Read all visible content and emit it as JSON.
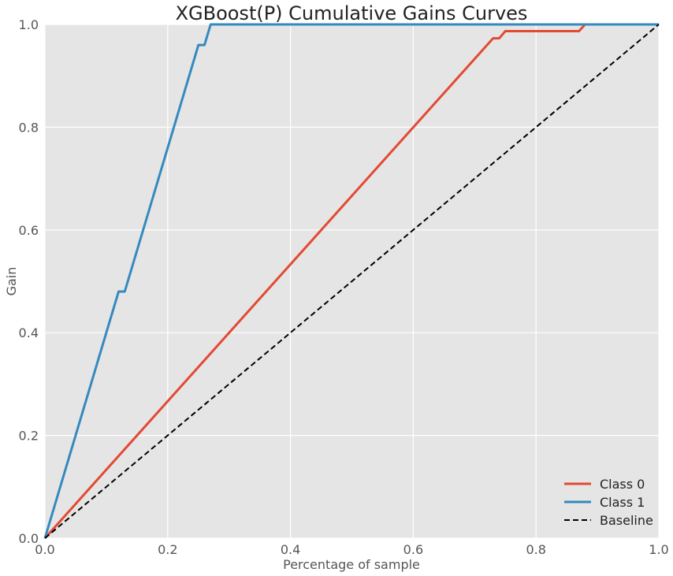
{
  "chart_data": {
    "type": "line",
    "title": "XGBoost(P) Cumulative Gains Curves",
    "xlabel": "Percentage of sample",
    "ylabel": "Gain",
    "xlim": [
      0,
      1
    ],
    "ylim": [
      0,
      1
    ],
    "x_ticks": [
      "0.0",
      "0.2",
      "0.4",
      "0.6",
      "0.8",
      "1.0"
    ],
    "y_ticks": [
      "0.0",
      "0.2",
      "0.4",
      "0.6",
      "0.8",
      "1.0"
    ],
    "grid": true,
    "legend_position": "bottom-right",
    "background_color": "#e5e5e5",
    "series": [
      {
        "name": "Class 0",
        "color": "#e24a33",
        "style": "solid",
        "points": [
          [
            0.0,
            0.0
          ],
          [
            0.73,
            0.973
          ],
          [
            0.74,
            0.973
          ],
          [
            0.75,
            0.987
          ],
          [
            0.87,
            0.987
          ],
          [
            0.88,
            1.0
          ],
          [
            1.0,
            1.0
          ]
        ]
      },
      {
        "name": "Class 1",
        "color": "#348abd",
        "style": "solid",
        "points": [
          [
            0.0,
            0.0
          ],
          [
            0.12,
            0.48
          ],
          [
            0.13,
            0.48
          ],
          [
            0.25,
            0.96
          ],
          [
            0.26,
            0.96
          ],
          [
            0.27,
            1.0
          ],
          [
            1.0,
            1.0
          ]
        ]
      },
      {
        "name": "Baseline",
        "color": "#000000",
        "style": "dashed",
        "points": [
          [
            0.0,
            0.0
          ],
          [
            1.0,
            1.0
          ]
        ]
      }
    ]
  }
}
